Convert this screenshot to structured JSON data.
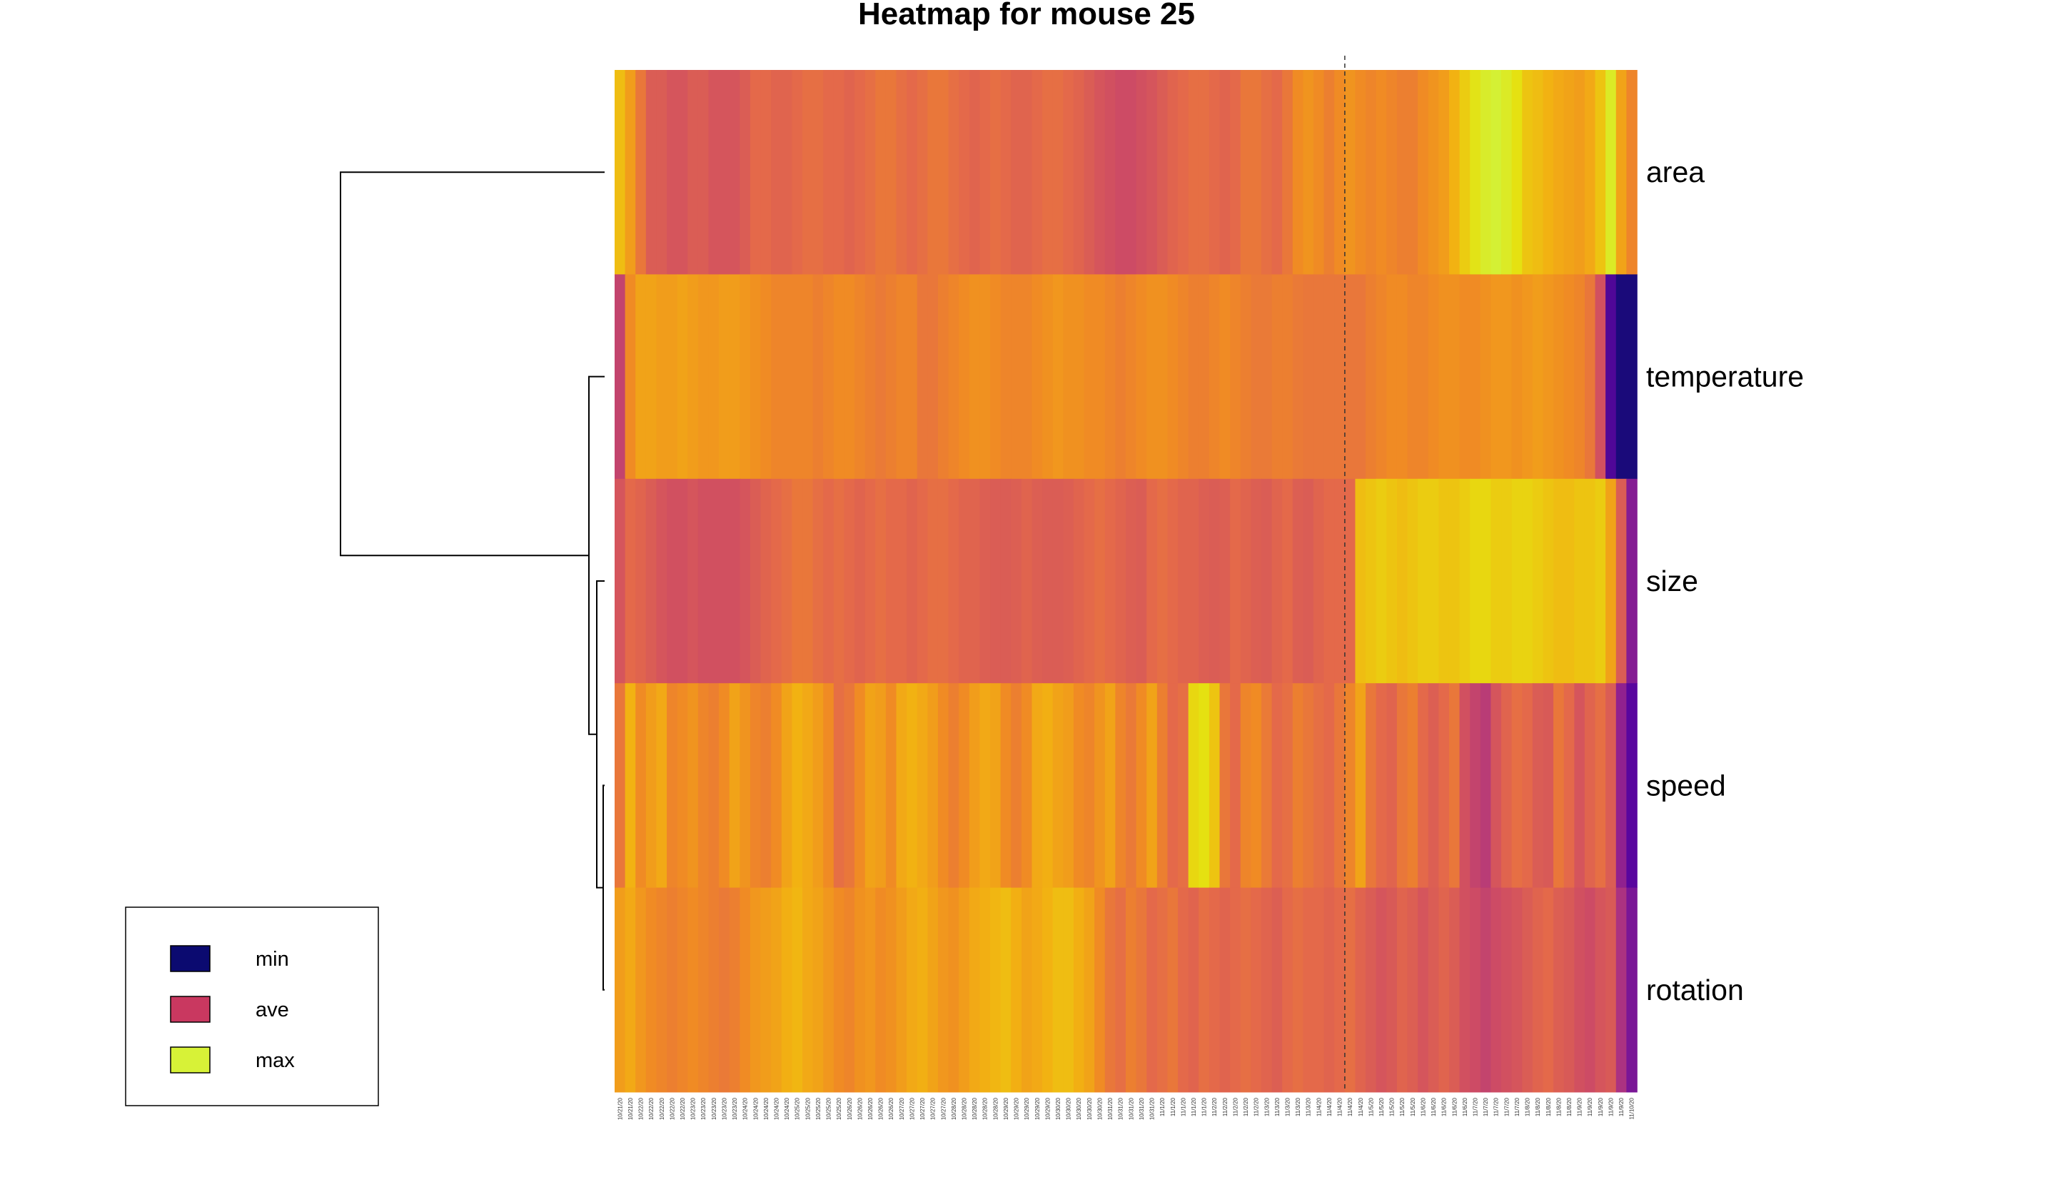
{
  "chart_data": {
    "type": "heatmap",
    "title": "Heatmap for mouse 25",
    "rows": [
      "area",
      "temperature",
      "size",
      "speed",
      "rotation"
    ],
    "columns": [
      "10/21/20",
      "10/21/20",
      "10/22/20",
      "10/22/20",
      "10/22/20",
      "10/22/20",
      "10/22/20",
      "10/23/20",
      "10/23/20",
      "10/23/20",
      "10/23/20",
      "10/23/20",
      "10/24/20",
      "10/24/20",
      "10/24/20",
      "10/24/20",
      "10/24/20",
      "10/25/20",
      "10/25/20",
      "10/25/20",
      "10/25/20",
      "10/25/20",
      "10/26/20",
      "10/26/20",
      "10/26/20",
      "10/26/20",
      "10/26/20",
      "10/27/20",
      "10/27/20",
      "10/27/20",
      "10/27/20",
      "10/27/20",
      "10/28/20",
      "10/28/20",
      "10/28/20",
      "10/28/20",
      "10/28/20",
      "10/29/20",
      "10/29/20",
      "10/29/20",
      "10/29/20",
      "10/29/20",
      "10/30/20",
      "10/30/20",
      "10/30/20",
      "10/30/20",
      "10/30/20",
      "10/31/20",
      "10/31/20",
      "10/31/20",
      "10/31/20",
      "10/31/20",
      "11/1/20",
      "11/1/20",
      "11/1/20",
      "11/1/20",
      "11/1/20",
      "11/2/20",
      "11/2/20",
      "11/2/20",
      "11/2/20",
      "11/2/20",
      "11/3/20",
      "11/3/20",
      "11/3/20",
      "11/3/20",
      "11/3/20",
      "11/4/20",
      "11/4/20",
      "11/4/20",
      "11/4/20",
      "11/4/20",
      "11/5/20",
      "11/5/20",
      "11/5/20",
      "11/5/20",
      "11/5/20",
      "11/6/20",
      "11/6/20",
      "11/6/20",
      "11/6/20",
      "11/6/20",
      "11/7/20",
      "11/7/20",
      "11/7/20",
      "11/7/20",
      "11/7/20",
      "11/8/20",
      "11/8/20",
      "11/8/20",
      "11/8/20",
      "11/8/20",
      "11/9/20",
      "11/9/20",
      "11/9/20",
      "11/9/20",
      "11/9/20",
      "11/10/20"
    ],
    "values": [
      [
        0.78,
        0.68,
        0.55,
        0.45,
        0.45,
        0.42,
        0.42,
        0.45,
        0.45,
        0.42,
        0.42,
        0.42,
        0.45,
        0.5,
        0.5,
        0.48,
        0.48,
        0.5,
        0.52,
        0.52,
        0.5,
        0.5,
        0.48,
        0.5,
        0.52,
        0.55,
        0.55,
        0.52,
        0.5,
        0.52,
        0.55,
        0.55,
        0.52,
        0.5,
        0.48,
        0.5,
        0.52,
        0.5,
        0.48,
        0.48,
        0.5,
        0.52,
        0.52,
        0.5,
        0.48,
        0.45,
        0.42,
        0.4,
        0.38,
        0.38,
        0.4,
        0.42,
        0.45,
        0.48,
        0.5,
        0.52,
        0.52,
        0.5,
        0.48,
        0.5,
        0.55,
        0.55,
        0.52,
        0.5,
        0.55,
        0.62,
        0.65,
        0.62,
        0.58,
        0.62,
        0.65,
        0.62,
        0.6,
        0.62,
        0.6,
        0.58,
        0.58,
        0.62,
        0.65,
        0.68,
        0.75,
        0.82,
        0.9,
        0.97,
        1.0,
        0.95,
        0.88,
        0.8,
        0.78,
        0.75,
        0.72,
        0.7,
        0.68,
        0.72,
        0.8,
        0.95,
        0.7,
        0.6
      ],
      [
        0.35,
        0.62,
        0.7,
        0.7,
        0.68,
        0.68,
        0.7,
        0.68,
        0.66,
        0.66,
        0.68,
        0.68,
        0.66,
        0.64,
        0.62,
        0.6,
        0.6,
        0.6,
        0.6,
        0.58,
        0.6,
        0.62,
        0.62,
        0.6,
        0.58,
        0.56,
        0.58,
        0.6,
        0.6,
        0.55,
        0.55,
        0.58,
        0.6,
        0.62,
        0.64,
        0.64,
        0.62,
        0.6,
        0.6,
        0.6,
        0.62,
        0.64,
        0.66,
        0.64,
        0.64,
        0.62,
        0.62,
        0.6,
        0.58,
        0.6,
        0.62,
        0.64,
        0.64,
        0.62,
        0.6,
        0.58,
        0.58,
        0.6,
        0.62,
        0.6,
        0.58,
        0.56,
        0.56,
        0.58,
        0.58,
        0.56,
        0.55,
        0.55,
        0.55,
        0.55,
        0.55,
        0.55,
        0.58,
        0.6,
        0.62,
        0.62,
        0.6,
        0.6,
        0.62,
        0.64,
        0.64,
        0.62,
        0.62,
        0.64,
        0.66,
        0.66,
        0.64,
        0.66,
        0.68,
        0.66,
        0.64,
        0.62,
        0.6,
        0.55,
        0.4,
        0.1,
        0.0,
        0.0
      ],
      [
        0.42,
        0.5,
        0.48,
        0.45,
        0.42,
        0.4,
        0.4,
        0.42,
        0.4,
        0.4,
        0.4,
        0.4,
        0.42,
        0.45,
        0.48,
        0.5,
        0.52,
        0.55,
        0.55,
        0.52,
        0.5,
        0.52,
        0.5,
        0.48,
        0.5,
        0.52,
        0.5,
        0.5,
        0.48,
        0.5,
        0.52,
        0.52,
        0.5,
        0.48,
        0.48,
        0.46,
        0.45,
        0.45,
        0.46,
        0.48,
        0.46,
        0.45,
        0.45,
        0.46,
        0.48,
        0.5,
        0.52,
        0.5,
        0.48,
        0.46,
        0.45,
        0.5,
        0.52,
        0.5,
        0.48,
        0.48,
        0.46,
        0.45,
        0.46,
        0.5,
        0.48,
        0.46,
        0.45,
        0.48,
        0.5,
        0.46,
        0.45,
        0.48,
        0.5,
        0.5,
        0.5,
        0.78,
        0.8,
        0.82,
        0.8,
        0.78,
        0.8,
        0.82,
        0.82,
        0.8,
        0.8,
        0.82,
        0.85,
        0.85,
        0.82,
        0.82,
        0.84,
        0.84,
        0.82,
        0.8,
        0.78,
        0.78,
        0.8,
        0.8,
        0.82,
        0.7,
        0.45,
        0.2
      ],
      [
        0.55,
        0.75,
        0.62,
        0.68,
        0.72,
        0.6,
        0.62,
        0.65,
        0.6,
        0.58,
        0.62,
        0.7,
        0.65,
        0.6,
        0.58,
        0.62,
        0.7,
        0.75,
        0.72,
        0.68,
        0.62,
        0.52,
        0.55,
        0.62,
        0.7,
        0.68,
        0.62,
        0.72,
        0.75,
        0.72,
        0.68,
        0.62,
        0.58,
        0.62,
        0.68,
        0.72,
        0.7,
        0.62,
        0.58,
        0.62,
        0.72,
        0.74,
        0.7,
        0.68,
        0.62,
        0.6,
        0.65,
        0.7,
        0.6,
        0.56,
        0.62,
        0.7,
        0.58,
        0.5,
        0.52,
        0.85,
        0.88,
        0.8,
        0.55,
        0.5,
        0.6,
        0.62,
        0.56,
        0.5,
        0.52,
        0.58,
        0.55,
        0.52,
        0.5,
        0.55,
        0.6,
        0.7,
        0.55,
        0.5,
        0.48,
        0.55,
        0.58,
        0.5,
        0.46,
        0.5,
        0.55,
        0.4,
        0.35,
        0.32,
        0.42,
        0.48,
        0.52,
        0.5,
        0.45,
        0.44,
        0.55,
        0.5,
        0.42,
        0.48,
        0.52,
        0.45,
        0.22,
        0.12
      ],
      [
        0.68,
        0.72,
        0.66,
        0.62,
        0.6,
        0.58,
        0.6,
        0.62,
        0.6,
        0.58,
        0.56,
        0.58,
        0.62,
        0.66,
        0.68,
        0.7,
        0.74,
        0.76,
        0.72,
        0.7,
        0.66,
        0.62,
        0.6,
        0.64,
        0.66,
        0.62,
        0.64,
        0.68,
        0.72,
        0.74,
        0.7,
        0.66,
        0.64,
        0.68,
        0.72,
        0.74,
        0.76,
        0.78,
        0.74,
        0.7,
        0.72,
        0.75,
        0.78,
        0.78,
        0.74,
        0.7,
        0.62,
        0.55,
        0.52,
        0.58,
        0.55,
        0.5,
        0.52,
        0.55,
        0.5,
        0.48,
        0.52,
        0.5,
        0.48,
        0.5,
        0.52,
        0.5,
        0.48,
        0.46,
        0.5,
        0.52,
        0.5,
        0.5,
        0.48,
        0.5,
        0.52,
        0.48,
        0.45,
        0.42,
        0.44,
        0.48,
        0.46,
        0.42,
        0.45,
        0.48,
        0.45,
        0.4,
        0.38,
        0.35,
        0.38,
        0.4,
        0.42,
        0.45,
        0.48,
        0.5,
        0.46,
        0.44,
        0.4,
        0.38,
        0.42,
        0.44,
        0.28,
        0.18
      ]
    ],
    "colorscale": [
      "#1a0a7a",
      "#5c06a0",
      "#a02a8a",
      "#cc4a66",
      "#e4694a",
      "#f08c22",
      "#f2b212",
      "#e6e010",
      "#d4f034"
    ],
    "legend": {
      "position": "bottom-left",
      "items": [
        {
          "label": "min",
          "color": "#0b0a70"
        },
        {
          "label": "ave",
          "color": "#c93860"
        },
        {
          "label": "max",
          "color": "#d7f237"
        }
      ]
    },
    "vline_column": 70,
    "dendrogram": "row clustering: (area, (temperature, (size, (speed, rotation))))"
  }
}
